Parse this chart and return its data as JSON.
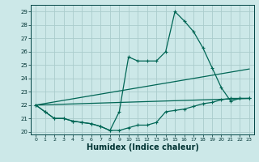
{
  "xlabel": "Humidex (Indice chaleur)",
  "bg_color": "#cce8e8",
  "grid_color": "#aacccc",
  "line_color": "#006655",
  "xlim": [
    -0.5,
    23.5
  ],
  "ylim": [
    19.8,
    29.5
  ],
  "xticks": [
    0,
    1,
    2,
    3,
    4,
    5,
    6,
    7,
    8,
    9,
    10,
    11,
    12,
    13,
    14,
    15,
    16,
    17,
    18,
    19,
    20,
    21,
    22,
    23
  ],
  "yticks": [
    20,
    21,
    22,
    23,
    24,
    25,
    26,
    27,
    28,
    29
  ],
  "line1_x": [
    0,
    1,
    2,
    3,
    4,
    5,
    6,
    7,
    8,
    9,
    10,
    11,
    12,
    13,
    14,
    15,
    16,
    17,
    18,
    19,
    20,
    21,
    22,
    23
  ],
  "line1_y": [
    22.0,
    21.5,
    21.0,
    21.0,
    20.8,
    20.7,
    20.6,
    20.4,
    20.1,
    21.5,
    25.6,
    25.3,
    25.3,
    25.3,
    26.0,
    29.0,
    28.3,
    27.5,
    26.3,
    24.8,
    23.3,
    22.3,
    22.5,
    22.5
  ],
  "line2_x": [
    0,
    1,
    2,
    3,
    4,
    5,
    6,
    7,
    8,
    9,
    10,
    11,
    12,
    13,
    14,
    15,
    16,
    17,
    18,
    19,
    20,
    21,
    22,
    23
  ],
  "line2_y": [
    22.0,
    21.5,
    21.0,
    21.0,
    20.8,
    20.7,
    20.6,
    20.4,
    20.1,
    20.1,
    20.3,
    20.5,
    20.5,
    20.7,
    21.5,
    21.6,
    21.7,
    21.9,
    22.1,
    22.2,
    22.4,
    22.5,
    22.5,
    22.5
  ],
  "line3_x": [
    0,
    23
  ],
  "line3_y": [
    22.0,
    22.5
  ],
  "line4_x": [
    0,
    23
  ],
  "line4_y": [
    22.0,
    24.7
  ]
}
